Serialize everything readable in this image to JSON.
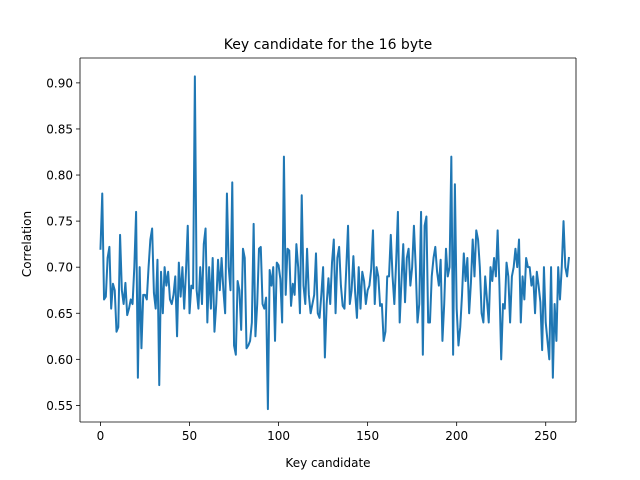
{
  "chart_data": {
    "type": "line",
    "title": "Key candidate for the 16 byte",
    "xlabel": "Key candidate",
    "ylabel": "Correlation",
    "xlim": [
      -11.5,
      267
    ],
    "ylim": [
      0.532,
      0.927
    ],
    "xticks": [
      0,
      50,
      100,
      150,
      200,
      250
    ],
    "yticks": [
      0.55,
      0.6,
      0.65,
      0.7,
      0.75,
      0.8,
      0.85,
      0.9
    ],
    "xtick_labels": [
      "0",
      "50",
      "100",
      "150",
      "200",
      "250"
    ],
    "ytick_labels": [
      "0.55",
      "0.60",
      "0.65",
      "0.70",
      "0.75",
      "0.80",
      "0.85",
      "0.90"
    ],
    "grid": false,
    "series": [
      {
        "color": "#1f77b4",
        "x_start": 0,
        "x_step": 1,
        "values": [
          0.72,
          0.78,
          0.665,
          0.668,
          0.71,
          0.722,
          0.655,
          0.682,
          0.675,
          0.63,
          0.635,
          0.735,
          0.675,
          0.66,
          0.683,
          0.648,
          0.655,
          0.665,
          0.66,
          0.7,
          0.76,
          0.58,
          0.7,
          0.612,
          0.67,
          0.67,
          0.665,
          0.7,
          0.73,
          0.742,
          0.672,
          0.655,
          0.708,
          0.572,
          0.695,
          0.65,
          0.7,
          0.68,
          0.695,
          0.665,
          0.66,
          0.67,
          0.69,
          0.625,
          0.705,
          0.668,
          0.7,
          0.655,
          0.695,
          0.745,
          0.65,
          0.68,
          0.677,
          0.907,
          0.675,
          0.655,
          0.7,
          0.66,
          0.725,
          0.742,
          0.64,
          0.7,
          0.655,
          0.71,
          0.63,
          0.66,
          0.708,
          0.675,
          0.71,
          0.675,
          0.65,
          0.78,
          0.7,
          0.675,
          0.792,
          0.615,
          0.605,
          0.685,
          0.675,
          0.632,
          0.72,
          0.71,
          0.612,
          0.615,
          0.62,
          0.64,
          0.747,
          0.625,
          0.66,
          0.72,
          0.722,
          0.66,
          0.655,
          0.667,
          0.546,
          0.697,
          0.68,
          0.7,
          0.62,
          0.705,
          0.702,
          0.687,
          0.64,
          0.82,
          0.67,
          0.72,
          0.718,
          0.658,
          0.682,
          0.67,
          0.725,
          0.7,
          0.65,
          0.778,
          0.68,
          0.66,
          0.72,
          0.67,
          0.65,
          0.66,
          0.67,
          0.715,
          0.65,
          0.645,
          0.67,
          0.7,
          0.602,
          0.66,
          0.688,
          0.66,
          0.705,
          0.73,
          0.65,
          0.71,
          0.722,
          0.68,
          0.658,
          0.655,
          0.698,
          0.745,
          0.66,
          0.675,
          0.712,
          0.672,
          0.645,
          0.7,
          0.655,
          0.695,
          0.685,
          0.66,
          0.675,
          0.68,
          0.698,
          0.74,
          0.66,
          0.7,
          0.69,
          0.658,
          0.66,
          0.62,
          0.63,
          0.69,
          0.69,
          0.735,
          0.69,
          0.66,
          0.705,
          0.76,
          0.64,
          0.685,
          0.725,
          0.662,
          0.71,
          0.72,
          0.68,
          0.7,
          0.745,
          0.7,
          0.64,
          0.66,
          0.76,
          0.605,
          0.745,
          0.755,
          0.64,
          0.64,
          0.69,
          0.71,
          0.722,
          0.695,
          0.68,
          0.708,
          0.62,
          0.66,
          0.72,
          0.69,
          0.7,
          0.82,
          0.605,
          0.79,
          0.655,
          0.615,
          0.635,
          0.67,
          0.715,
          0.685,
          0.71,
          0.65,
          0.683,
          0.73,
          0.69,
          0.74,
          0.73,
          0.7,
          0.65,
          0.64,
          0.69,
          0.665,
          0.64,
          0.7,
          0.685,
          0.71,
          0.69,
          0.74,
          0.68,
          0.6,
          0.66,
          0.655,
          0.705,
          0.69,
          0.64,
          0.69,
          0.7,
          0.72,
          0.7,
          0.73,
          0.64,
          0.69,
          0.665,
          0.71,
          0.7,
          0.7,
          0.68,
          0.69,
          0.65,
          0.695,
          0.68,
          0.662,
          0.61,
          0.7,
          0.64,
          0.62,
          0.6,
          0.7,
          0.58,
          0.66,
          0.62,
          0.7,
          0.665,
          0.7,
          0.75,
          0.7,
          0.69,
          0.71
        ]
      }
    ]
  }
}
